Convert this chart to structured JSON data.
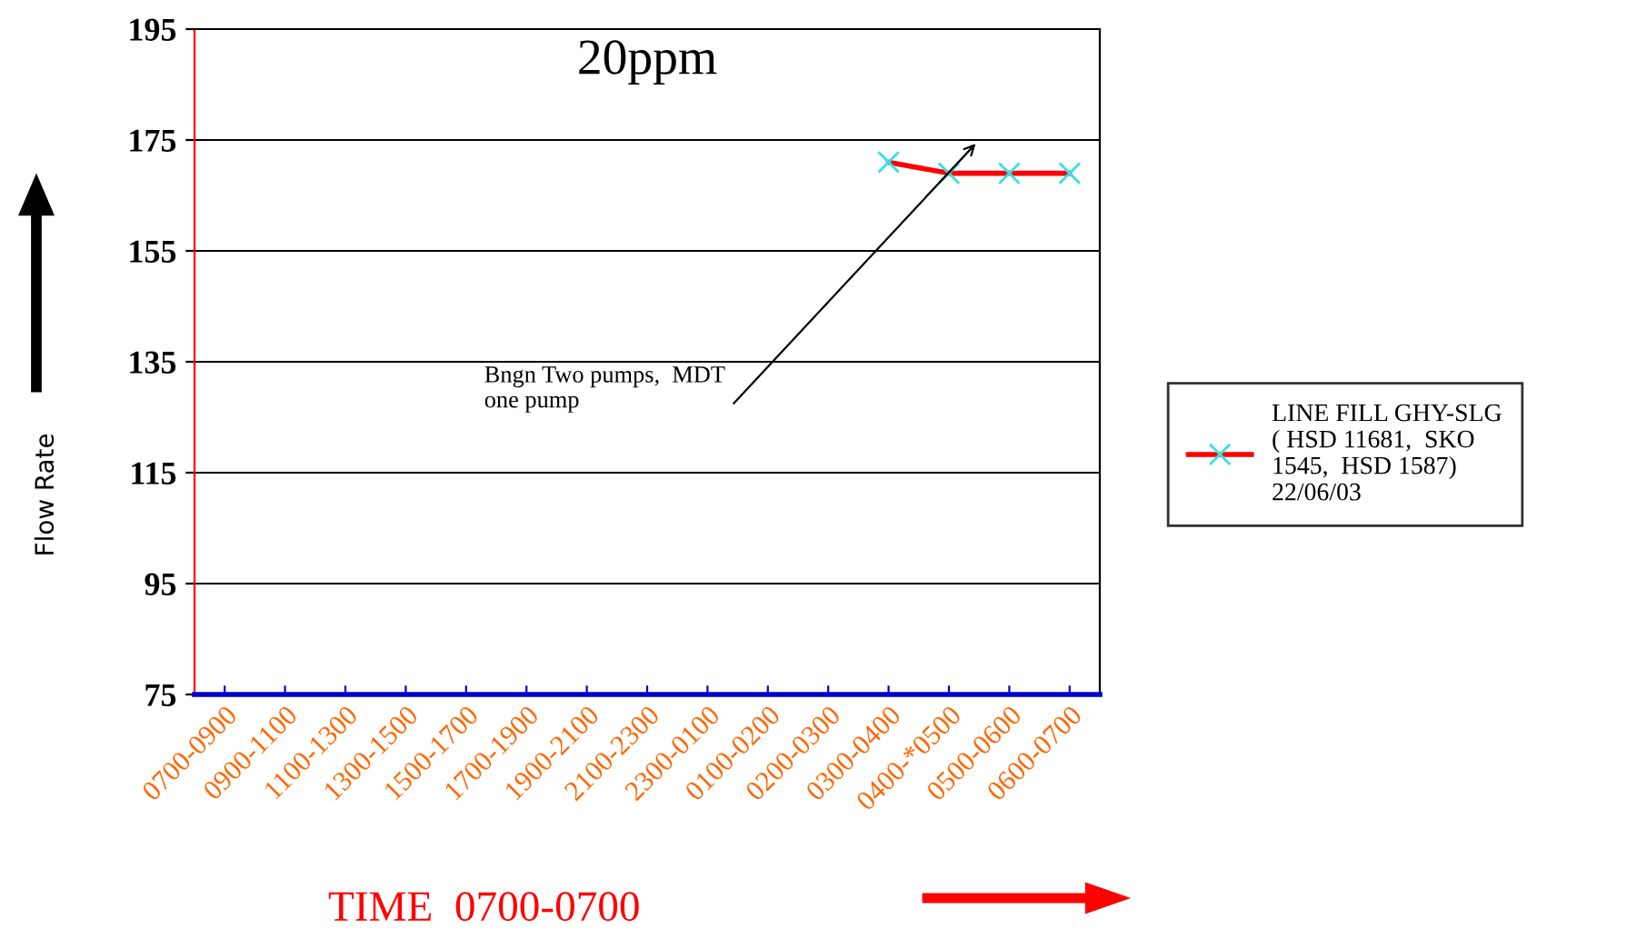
{
  "chart_data": {
    "type": "line",
    "title": "20ppm",
    "xlabel": "TIME  0700-0700",
    "ylabel": "Flow Rate",
    "categories": [
      "0700-0900",
      "0900-1100",
      "1100-1300",
      "1300-1500",
      "1500-1700",
      "1700-1900",
      "1900-2100",
      "2100-2300",
      "2300-0100",
      "0100-0200",
      "0200-0300",
      "0300-0400",
      "0400-*0500",
      "0500-0600",
      "0600-0700"
    ],
    "series": [
      {
        "name": "LINE FILL GHY-SLG\n( HSD 11681,  SKO\n1545,  HSD 1587)\n22/06/03",
        "color": "#ff0000",
        "values": [
          null,
          null,
          null,
          null,
          null,
          null,
          null,
          null,
          null,
          null,
          null,
          171,
          169,
          169,
          169
        ]
      }
    ],
    "annotations": [
      "Bngn Two pumps,  MDT\none pump"
    ],
    "ylim": [
      75,
      195
    ],
    "yticks": [
      75,
      95,
      115,
      135,
      155,
      175,
      195
    ],
    "grid": "y",
    "legend": "right",
    "marker": "cross",
    "line_style": "solid"
  }
}
